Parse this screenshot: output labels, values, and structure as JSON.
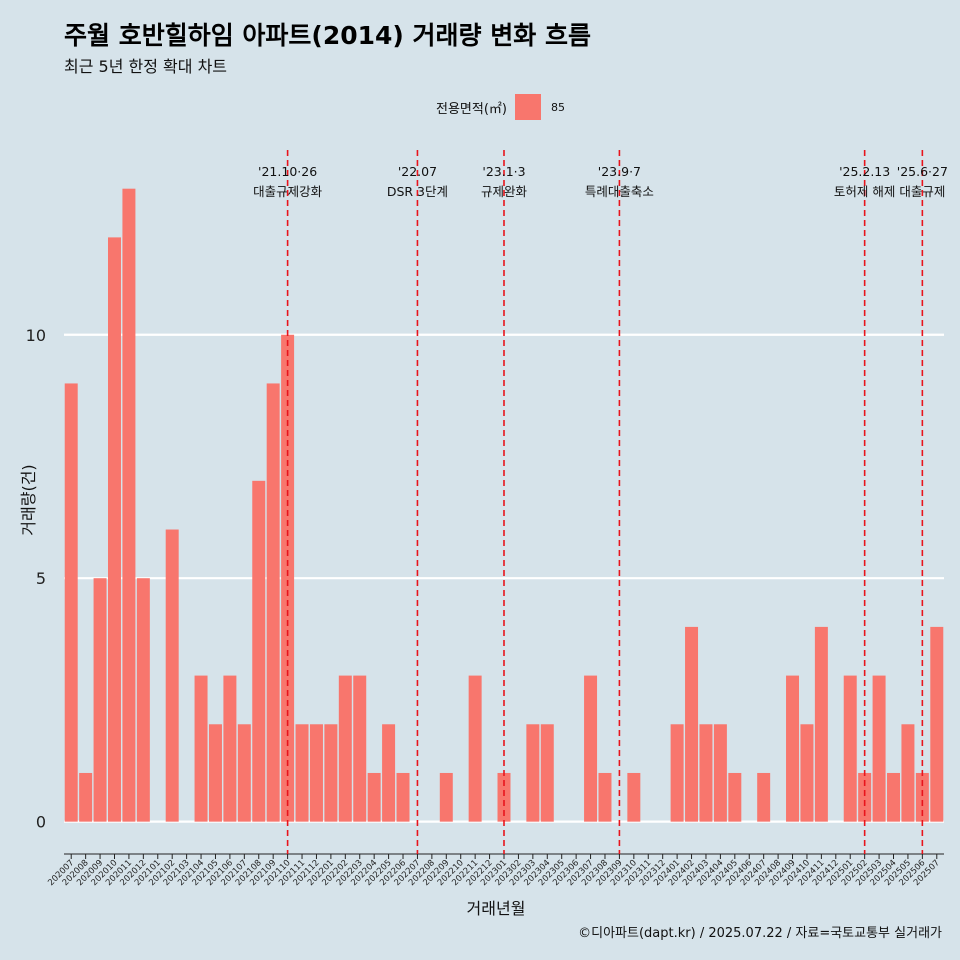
{
  "title": "주월 호반힐하임 아파트(2014) 거래량 변화 흐름",
  "subtitle": "최근 5년 한정 확대 차트",
  "caption": "©디아파트(dapt.kr) / 2025.07.22 / 자료=국토교통부 실거래가",
  "legend": {
    "title": "전용면적(㎡)",
    "label": "85",
    "color": "#f8766d"
  },
  "chart_data": {
    "type": "bar",
    "xlabel": "거래년월",
    "ylabel": "거래량(건)",
    "ylim": [
      -0.5,
      14
    ],
    "yticks": [
      0,
      5,
      10
    ],
    "grid": true,
    "legend_position": "top",
    "categories": [
      "202007",
      "202008",
      "202009",
      "202010",
      "202011",
      "202012",
      "202101",
      "202102",
      "202103",
      "202104",
      "202105",
      "202106",
      "202107",
      "202108",
      "202109",
      "202110",
      "202111",
      "202112",
      "202201",
      "202202",
      "202203",
      "202204",
      "202205",
      "202206",
      "202207",
      "202208",
      "202209",
      "202210",
      "202211",
      "202212",
      "202301",
      "202302",
      "202303",
      "202304",
      "202305",
      "202306",
      "202307",
      "202308",
      "202309",
      "202310",
      "202311",
      "202312",
      "202401",
      "202402",
      "202403",
      "202404",
      "202405",
      "202406",
      "202407",
      "202408",
      "202409",
      "202410",
      "202411",
      "202412",
      "202501",
      "202502",
      "202503",
      "202504",
      "202505",
      "202506",
      "202507"
    ],
    "series": [
      {
        "name": "85",
        "color": "#f8766d",
        "values": [
          9,
          1,
          5,
          12,
          13,
          5,
          0,
          6,
          0,
          3,
          2,
          3,
          2,
          7,
          9,
          10,
          2,
          2,
          2,
          3,
          3,
          1,
          2,
          1,
          0,
          0,
          1,
          0,
          3,
          0,
          1,
          0,
          2,
          2,
          0,
          0,
          3,
          1,
          0,
          1,
          0,
          0,
          2,
          4,
          2,
          2,
          1,
          0,
          1,
          0,
          3,
          2,
          4,
          0,
          3,
          1,
          3,
          1,
          2,
          1,
          4
        ]
      }
    ],
    "annotations": [
      {
        "x": "202110",
        "date": "'21.10·26",
        "label": "대출규제강화"
      },
      {
        "x": "202207",
        "date": "'22.07",
        "label": "DSR 3단계"
      },
      {
        "x": "202301",
        "date": "'23.1·3",
        "label": "규제완화"
      },
      {
        "x": "202309",
        "date": "'23.9·7",
        "label": "특례대출축소"
      },
      {
        "x": "202502",
        "date": "'25.2.13",
        "label": "토허제 해제"
      },
      {
        "x": "202506",
        "date": "'25.6·27",
        "label": "대출규제"
      }
    ]
  }
}
